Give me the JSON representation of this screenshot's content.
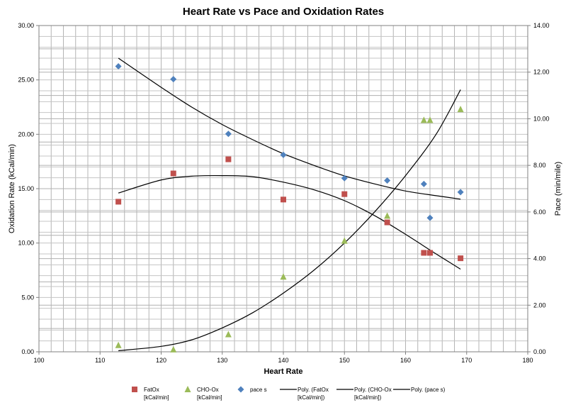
{
  "chart_data": {
    "type": "scatter",
    "title": "Heart Rate vs Pace and Oxidation Rates",
    "xlabel": "Heart Rate",
    "ylabel_left": "Oxidation Rate (kCal/min)",
    "ylabel_right": "Pace (min/mile)",
    "xlim": [
      100,
      180
    ],
    "ylim_left": [
      0,
      30
    ],
    "ylim_right": [
      0,
      14
    ],
    "x_ticks": [
      "100",
      "110",
      "120",
      "130",
      "140",
      "150",
      "160",
      "170",
      "180"
    ],
    "y_left_ticks": [
      "0.00",
      "5.00",
      "10.00",
      "15.00",
      "20.00",
      "25.00",
      "30.00"
    ],
    "y_right_ticks": [
      "0.00",
      "2.00",
      "4.00",
      "6.00",
      "8.00",
      "10.00",
      "12.00",
      "14.00"
    ],
    "grid": true,
    "legend_position": "bottom",
    "series": [
      {
        "name": "FatOx [kCal/min]",
        "marker": "square",
        "color": "#c0504d",
        "axis": "left",
        "points": [
          [
            113,
            13.8
          ],
          [
            122,
            16.4
          ],
          [
            131,
            17.7
          ],
          [
            140,
            14.0
          ],
          [
            150,
            14.5
          ],
          [
            157,
            11.9
          ],
          [
            163,
            9.1
          ],
          [
            164,
            9.1
          ],
          [
            169,
            8.6
          ]
        ]
      },
      {
        "name": "CHO-Ox [kCal/min]",
        "marker": "triangle",
        "color": "#9bbb59",
        "axis": "left",
        "points": [
          [
            113,
            0.6
          ],
          [
            122,
            0.2
          ],
          [
            131,
            1.6
          ],
          [
            140,
            6.9
          ],
          [
            150,
            10.2
          ],
          [
            157,
            12.5
          ],
          [
            163,
            21.3
          ],
          [
            164,
            21.3
          ],
          [
            169,
            22.3
          ]
        ]
      },
      {
        "name": "pace s",
        "marker": "diamond",
        "color": "#4f81bd",
        "axis": "right",
        "points": [
          [
            113,
            12.25
          ],
          [
            122,
            11.7
          ],
          [
            131,
            9.35
          ],
          [
            140,
            8.45
          ],
          [
            150,
            7.45
          ],
          [
            157,
            7.35
          ],
          [
            163,
            7.2
          ],
          [
            164,
            5.75
          ],
          [
            169,
            6.85
          ]
        ]
      }
    ],
    "trendlines": [
      {
        "name": "Poly. (FatOx [kCal/min])",
        "axis": "left",
        "x_range": [
          113,
          169
        ],
        "points": [
          [
            113,
            14.6
          ],
          [
            120,
            15.8
          ],
          [
            125,
            16.15
          ],
          [
            130,
            16.2
          ],
          [
            135,
            16.1
          ],
          [
            140,
            15.6
          ],
          [
            145,
            14.9
          ],
          [
            150,
            13.9
          ],
          [
            155,
            12.5
          ],
          [
            160,
            10.8
          ],
          [
            165,
            9.0
          ],
          [
            169,
            7.6
          ]
        ]
      },
      {
        "name": "Poly. (CHO-Ox [kCal/min])",
        "axis": "left",
        "x_range": [
          113,
          169
        ],
        "points": [
          [
            113,
            0.1
          ],
          [
            120,
            0.5
          ],
          [
            125,
            1.1
          ],
          [
            130,
            2.2
          ],
          [
            135,
            3.6
          ],
          [
            140,
            5.4
          ],
          [
            145,
            7.5
          ],
          [
            150,
            10.0
          ],
          [
            155,
            12.9
          ],
          [
            160,
            16.2
          ],
          [
            165,
            20.0
          ],
          [
            169,
            24.1
          ]
        ]
      },
      {
        "name": "Poly. (pace s)",
        "axis": "right",
        "x_range": [
          113,
          169
        ],
        "points": [
          [
            113,
            12.6
          ],
          [
            120,
            11.35
          ],
          [
            125,
            10.5
          ],
          [
            130,
            9.75
          ],
          [
            135,
            9.1
          ],
          [
            140,
            8.5
          ],
          [
            145,
            8.0
          ],
          [
            150,
            7.55
          ],
          [
            155,
            7.2
          ],
          [
            160,
            6.9
          ],
          [
            165,
            6.7
          ],
          [
            169,
            6.55
          ]
        ]
      }
    ],
    "legend": [
      {
        "line1": "FatOx",
        "line2": "[kCal/min]",
        "symbol": "square",
        "color": "#c0504d"
      },
      {
        "line1": "CHO-Ox",
        "line2": "[kCal/min]",
        "symbol": "triangle",
        "color": "#9bbb59"
      },
      {
        "line1": "pace s",
        "line2": "",
        "symbol": "diamond",
        "color": "#4f81bd"
      },
      {
        "line1": "Poly. (FatOx",
        "line2": "[kCal/min])",
        "symbol": "line",
        "color": "#000000"
      },
      {
        "line1": "Poly. (CHO-Ox",
        "line2": "[kCal/min])",
        "symbol": "line",
        "color": "#000000"
      },
      {
        "line1": "Poly. (pace s)",
        "line2": "",
        "symbol": "line",
        "color": "#000000"
      }
    ]
  }
}
